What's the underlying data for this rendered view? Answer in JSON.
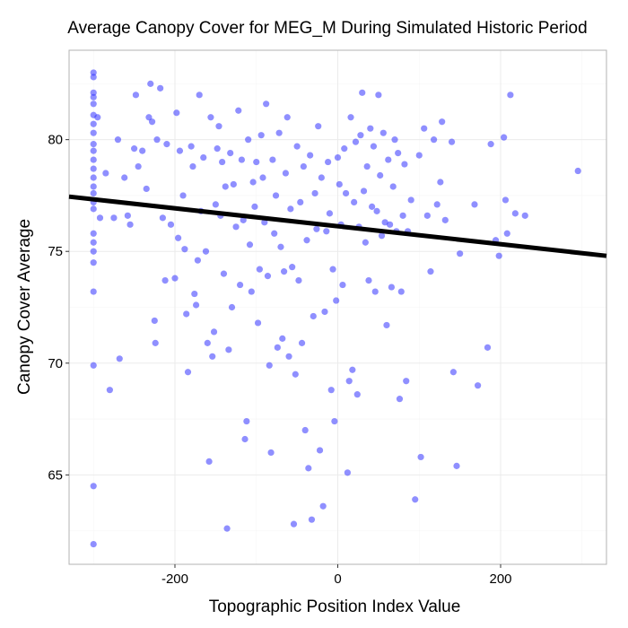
{
  "chart_data": {
    "type": "scatter",
    "title": "Average Canopy Cover for MEG_M During Simulated Historic Period",
    "xlabel": "Topographic Position Index Value",
    "ylabel": "Canopy Cover Average",
    "xlim": [
      -330,
      330
    ],
    "ylim": [
      61,
      84
    ],
    "x_ticks": [
      -200,
      0,
      200
    ],
    "y_ticks": [
      65,
      70,
      75,
      80
    ],
    "x_tick_labels": [
      "-200",
      "0",
      "200"
    ],
    "y_tick_labels": [
      "65",
      "70",
      "75",
      "80"
    ],
    "grid": true,
    "point_color": "#3333ff",
    "line_color": "#000000",
    "trend_line": {
      "x": [
        -330,
        330
      ],
      "y": [
        77.45,
        74.8
      ]
    },
    "points": [
      [
        -300,
        83.0
      ],
      [
        -300,
        82.8
      ],
      [
        -300,
        82.1
      ],
      [
        -300,
        81.9
      ],
      [
        -300,
        81.6
      ],
      [
        -300,
        81.1
      ],
      [
        -300,
        80.7
      ],
      [
        -300,
        80.3
      ],
      [
        -300,
        79.8
      ],
      [
        -300,
        79.5
      ],
      [
        -300,
        79.1
      ],
      [
        -300,
        78.7
      ],
      [
        -300,
        78.3
      ],
      [
        -300,
        77.9
      ],
      [
        -300,
        77.6
      ],
      [
        -300,
        77.2
      ],
      [
        -300,
        76.9
      ],
      [
        -300,
        75.8
      ],
      [
        -300,
        75.4
      ],
      [
        -300,
        75.0
      ],
      [
        -300,
        74.5
      ],
      [
        -300,
        73.2
      ],
      [
        -300,
        69.9
      ],
      [
        -300,
        64.5
      ],
      [
        -300,
        61.9
      ],
      [
        -295,
        81.0
      ],
      [
        -292,
        76.5
      ],
      [
        -285,
        78.5
      ],
      [
        -280,
        68.8
      ],
      [
        -275,
        76.5
      ],
      [
        -270,
        80.0
      ],
      [
        -268,
        70.2
      ],
      [
        -262,
        78.3
      ],
      [
        -258,
        76.6
      ],
      [
        -255,
        76.2
      ],
      [
        -250,
        79.6
      ],
      [
        -248,
        82.0
      ],
      [
        -245,
        78.8
      ],
      [
        -240,
        79.5
      ],
      [
        -235,
        77.8
      ],
      [
        -232,
        81.0
      ],
      [
        -230,
        82.5
      ],
      [
        -228,
        80.8
      ],
      [
        -225,
        71.9
      ],
      [
        -224,
        70.9
      ],
      [
        -222,
        80.0
      ],
      [
        -218,
        82.3
      ],
      [
        -215,
        76.5
      ],
      [
        -212,
        73.7
      ],
      [
        -210,
        79.8
      ],
      [
        -205,
        76.2
      ],
      [
        -200,
        73.8
      ],
      [
        -198,
        81.2
      ],
      [
        -196,
        75.6
      ],
      [
        -194,
        79.5
      ],
      [
        -190,
        77.5
      ],
      [
        -188,
        75.1
      ],
      [
        -186,
        72.2
      ],
      [
        -184,
        69.6
      ],
      [
        -180,
        79.7
      ],
      [
        -178,
        78.8
      ],
      [
        -176,
        73.1
      ],
      [
        -174,
        72.6
      ],
      [
        -172,
        74.6
      ],
      [
        -170,
        82.0
      ],
      [
        -168,
        76.8
      ],
      [
        -165,
        79.2
      ],
      [
        -162,
        75.0
      ],
      [
        -160,
        70.9
      ],
      [
        -158,
        65.6
      ],
      [
        -156,
        81.0
      ],
      [
        -154,
        70.3
      ],
      [
        -152,
        71.4
      ],
      [
        -150,
        77.1
      ],
      [
        -148,
        79.6
      ],
      [
        -146,
        80.6
      ],
      [
        -144,
        76.6
      ],
      [
        -142,
        79.0
      ],
      [
        -140,
        74.0
      ],
      [
        -138,
        77.9
      ],
      [
        -136,
        62.6
      ],
      [
        -134,
        70.6
      ],
      [
        -132,
        79.4
      ],
      [
        -130,
        72.5
      ],
      [
        -128,
        78.0
      ],
      [
        -125,
        76.1
      ],
      [
        -122,
        81.3
      ],
      [
        -120,
        73.5
      ],
      [
        -118,
        79.1
      ],
      [
        -116,
        76.4
      ],
      [
        -114,
        66.6
      ],
      [
        -112,
        67.4
      ],
      [
        -110,
        80.0
      ],
      [
        -108,
        75.3
      ],
      [
        -106,
        73.2
      ],
      [
        -104,
        78.1
      ],
      [
        -102,
        77.0
      ],
      [
        -100,
        79.0
      ],
      [
        -98,
        71.8
      ],
      [
        -96,
        74.2
      ],
      [
        -94,
        80.2
      ],
      [
        -92,
        78.3
      ],
      [
        -90,
        76.3
      ],
      [
        -88,
        81.6
      ],
      [
        -86,
        73.9
      ],
      [
        -84,
        69.9
      ],
      [
        -82,
        66.0
      ],
      [
        -80,
        79.1
      ],
      [
        -78,
        75.8
      ],
      [
        -76,
        77.5
      ],
      [
        -74,
        70.7
      ],
      [
        -72,
        80.3
      ],
      [
        -70,
        75.2
      ],
      [
        -68,
        71.1
      ],
      [
        -66,
        74.1
      ],
      [
        -64,
        78.5
      ],
      [
        -62,
        81.0
      ],
      [
        -60,
        70.3
      ],
      [
        -58,
        76.9
      ],
      [
        -56,
        74.3
      ],
      [
        -54,
        62.8
      ],
      [
        -52,
        69.5
      ],
      [
        -50,
        79.7
      ],
      [
        -48,
        73.7
      ],
      [
        -46,
        77.2
      ],
      [
        -44,
        70.9
      ],
      [
        -42,
        78.8
      ],
      [
        -40,
        67.0
      ],
      [
        -38,
        75.5
      ],
      [
        -36,
        65.3
      ],
      [
        -34,
        79.3
      ],
      [
        -32,
        63.0
      ],
      [
        -30,
        72.1
      ],
      [
        -28,
        77.6
      ],
      [
        -26,
        76.0
      ],
      [
        -24,
        80.6
      ],
      [
        -22,
        66.1
      ],
      [
        -20,
        78.3
      ],
      [
        -18,
        63.6
      ],
      [
        -16,
        72.3
      ],
      [
        -14,
        75.9
      ],
      [
        -12,
        79.0
      ],
      [
        -10,
        76.7
      ],
      [
        -8,
        68.8
      ],
      [
        -6,
        74.2
      ],
      [
        -4,
        67.4
      ],
      [
        -2,
        72.8
      ],
      [
        0,
        79.2
      ],
      [
        2,
        78.0
      ],
      [
        4,
        76.2
      ],
      [
        6,
        73.5
      ],
      [
        8,
        79.6
      ],
      [
        10,
        77.6
      ],
      [
        12,
        65.1
      ],
      [
        14,
        69.2
      ],
      [
        16,
        81.0
      ],
      [
        18,
        69.7
      ],
      [
        20,
        77.2
      ],
      [
        22,
        79.9
      ],
      [
        24,
        68.6
      ],
      [
        26,
        76.1
      ],
      [
        28,
        80.2
      ],
      [
        30,
        82.1
      ],
      [
        32,
        77.7
      ],
      [
        34,
        75.4
      ],
      [
        36,
        78.8
      ],
      [
        38,
        73.7
      ],
      [
        40,
        80.5
      ],
      [
        42,
        77.0
      ],
      [
        44,
        79.7
      ],
      [
        46,
        73.2
      ],
      [
        48,
        76.8
      ],
      [
        50,
        82.0
      ],
      [
        52,
        78.4
      ],
      [
        54,
        75.7
      ],
      [
        56,
        80.3
      ],
      [
        58,
        76.3
      ],
      [
        60,
        71.7
      ],
      [
        62,
        79.1
      ],
      [
        64,
        76.2
      ],
      [
        66,
        73.4
      ],
      [
        68,
        77.9
      ],
      [
        70,
        80.0
      ],
      [
        72,
        75.9
      ],
      [
        74,
        79.4
      ],
      [
        76,
        68.4
      ],
      [
        78,
        73.2
      ],
      [
        80,
        76.6
      ],
      [
        82,
        78.9
      ],
      [
        84,
        69.2
      ],
      [
        86,
        75.9
      ],
      [
        90,
        77.3
      ],
      [
        95,
        63.9
      ],
      [
        100,
        79.3
      ],
      [
        102,
        65.8
      ],
      [
        106,
        80.5
      ],
      [
        110,
        76.6
      ],
      [
        114,
        74.1
      ],
      [
        118,
        80.0
      ],
      [
        122,
        77.1
      ],
      [
        126,
        78.1
      ],
      [
        128,
        80.8
      ],
      [
        132,
        76.4
      ],
      [
        140,
        79.9
      ],
      [
        142,
        69.6
      ],
      [
        146,
        65.4
      ],
      [
        150,
        74.9
      ],
      [
        168,
        77.1
      ],
      [
        172,
        69.0
      ],
      [
        184,
        70.7
      ],
      [
        188,
        79.8
      ],
      [
        194,
        75.5
      ],
      [
        198,
        74.8
      ],
      [
        204,
        80.1
      ],
      [
        206,
        77.3
      ],
      [
        208,
        75.8
      ],
      [
        212,
        82.0
      ],
      [
        218,
        76.7
      ],
      [
        230,
        76.6
      ],
      [
        295,
        78.6
      ]
    ]
  }
}
